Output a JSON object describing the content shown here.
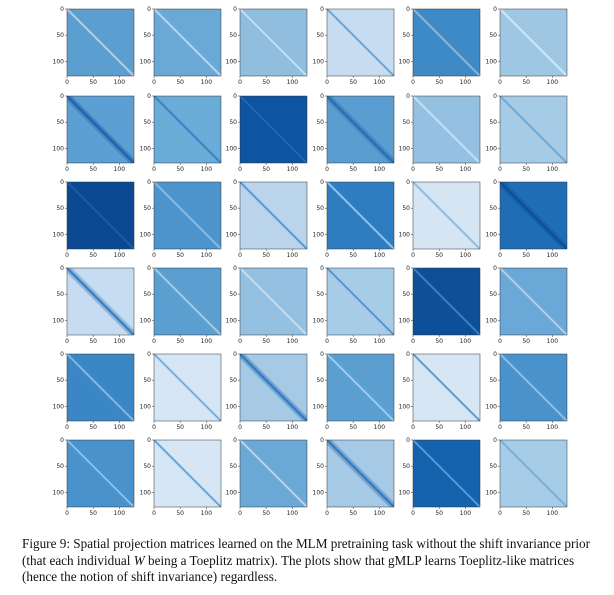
{
  "figure": {
    "grid": {
      "rows": 6,
      "cols": 6
    },
    "axes": {
      "ticks": [
        0,
        50,
        100
      ],
      "range": [
        0,
        128
      ]
    },
    "colormap": "Blues",
    "panels": [
      [
        {
          "bg": "#5b9fd1",
          "diag": "#c9def1",
          "style": "line"
        },
        {
          "bg": "#6aa9d6",
          "diag": "#d2e3f3",
          "style": "line"
        },
        {
          "bg": "#8fbedf",
          "diag": "#d6e6f4",
          "style": "line"
        },
        {
          "bg": "#c7dcf0",
          "diag": "#4f93cb",
          "style": "line"
        },
        {
          "bg": "#3d8ac6",
          "diag": "#9cc6e6",
          "style": "line"
        },
        {
          "bg": "#9ec7e4",
          "diag": "#e6f0f9",
          "style": "line"
        }
      ],
      [
        {
          "bg": "#5b9fd3",
          "diag": "#1c5ea8",
          "style": "dark"
        },
        {
          "bg": "#6aabd8",
          "diag": "#2f76ba",
          "style": "line"
        },
        {
          "bg": "#0d54a2",
          "diag": "#2c6fb5",
          "style": "line"
        },
        {
          "bg": "#5a9ed1",
          "diag": "#2769b0",
          "style": "dark"
        },
        {
          "bg": "#94c1e1",
          "diag": "#d7e6f4",
          "style": "line"
        },
        {
          "bg": "#a6cbe6",
          "diag": "#5e9fd0",
          "style": "line"
        }
      ],
      [
        {
          "bg": "#0b4a93",
          "diag": "#1e64ac",
          "style": "line"
        },
        {
          "bg": "#4d94cd",
          "diag": "#9cc6e6",
          "style": "line"
        },
        {
          "bg": "#bad4ec",
          "diag": "#3c86c4",
          "style": "line"
        },
        {
          "bg": "#2e7dc0",
          "diag": "#b9d6ee",
          "style": "line"
        },
        {
          "bg": "#d4e5f4",
          "diag": "#79b1da",
          "style": "line"
        },
        {
          "bg": "#1f6db5",
          "diag": "#0b4c95",
          "style": "dark"
        }
      ],
      [
        {
          "bg": "#c7dcf0",
          "diag": "#2f7bbf",
          "style": "dark"
        },
        {
          "bg": "#5b9fd1",
          "diag": "#bcd8ef",
          "style": "line"
        },
        {
          "bg": "#94c1e1",
          "diag": "#d6e6f4",
          "style": "line"
        },
        {
          "bg": "#a7cce7",
          "diag": "#3c86c4",
          "style": "line"
        },
        {
          "bg": "#0d4f99",
          "diag": "#4b8ecb",
          "style": "line"
        },
        {
          "bg": "#6aa8d7",
          "diag": "#c6ddf0",
          "style": "line"
        }
      ],
      [
        {
          "bg": "#3b86c5",
          "diag": "#9cc6e6",
          "style": "line"
        },
        {
          "bg": "#d6e6f4",
          "diag": "#5e9fd0",
          "style": "line"
        },
        {
          "bg": "#a6cae6",
          "diag": "#2d74b8",
          "style": "dark"
        },
        {
          "bg": "#5b9fd1",
          "diag": "#b9d6ee",
          "style": "line"
        },
        {
          "bg": "#d6e6f4",
          "diag": "#3c86c4",
          "style": "line"
        },
        {
          "bg": "#4a92cc",
          "diag": "#a7cce8",
          "style": "line"
        }
      ],
      [
        {
          "bg": "#4a92cc",
          "diag": "#a7cce8",
          "style": "line"
        },
        {
          "bg": "#d6e6f4",
          "diag": "#4a8fca",
          "style": "line"
        },
        {
          "bg": "#6aa9d6",
          "diag": "#cfe3f3",
          "style": "line"
        },
        {
          "bg": "#a6cae6",
          "diag": "#2d74b8",
          "style": "dark"
        },
        {
          "bg": "#1562ae",
          "diag": "#6fa9d8",
          "style": "line"
        },
        {
          "bg": "#a7cce7",
          "diag": "#6aa7d6",
          "style": "line"
        }
      ]
    ]
  },
  "caption": {
    "label": "Figure 9:",
    "text_before_var": " Spatial projection matrices learned on the MLM pretraining task without the shift invariance prior (that each individual ",
    "variable": "W",
    "text_after_var": " being a Toeplitz matrix). The plots show that gMLP learns Toeplitz-like matrices (hence the notion of shift invariance) regardless."
  }
}
